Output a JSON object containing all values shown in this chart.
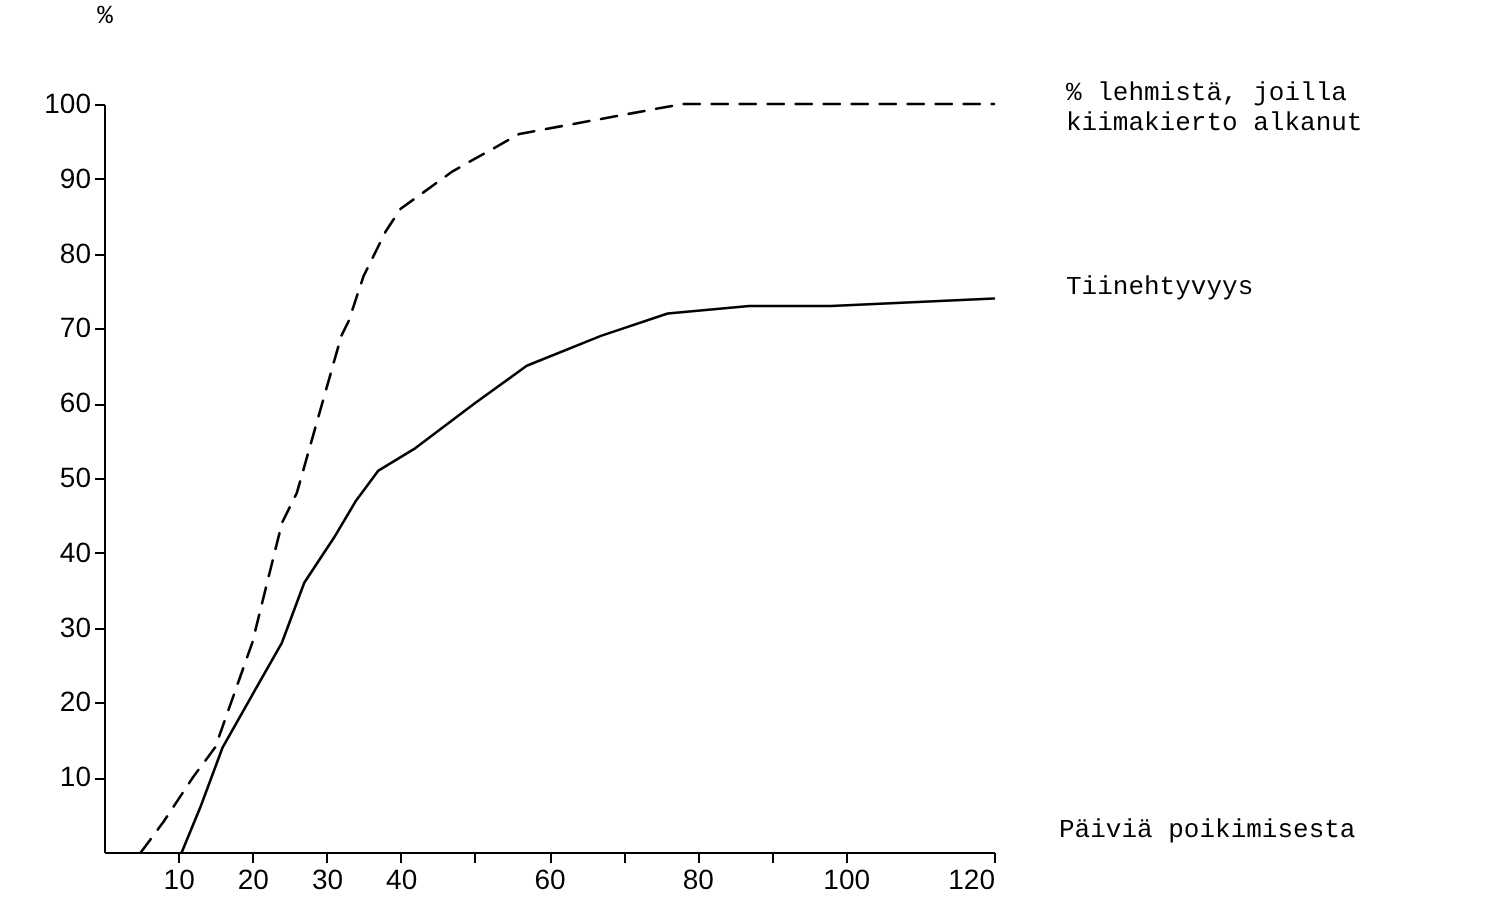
{
  "chart_data": {
    "type": "line",
    "xlabel": "Päiviä poikimisesta",
    "ylabel": "%",
    "xlim": [
      0,
      120
    ],
    "xticks": [
      10,
      20,
      30,
      40,
      {
        "value": 50,
        "label": null
      },
      60,
      {
        "value": 70,
        "label": null
      },
      80,
      {
        "value": 90,
        "label": null
      },
      100,
      120
    ],
    "ylim": [
      0,
      100
    ],
    "yticks": [
      10,
      20,
      30,
      40,
      50,
      60,
      70,
      80,
      90,
      100
    ],
    "grid": false,
    "legend": false,
    "marker": "none",
    "series": [
      {
        "name": "% lehmistä, joilla\nkiimakierto alkanut",
        "color": "#000000",
        "line_style": "dashed",
        "x": [
          5,
          8,
          12,
          15,
          20,
          24,
          26,
          32,
          33,
          35,
          38,
          40,
          47,
          56,
          67,
          78,
          94,
          120
        ],
        "values": [
          0,
          4,
          10,
          14,
          28,
          44,
          48,
          69,
          71,
          77,
          83,
          86,
          91,
          96,
          98,
          100,
          100,
          100
        ]
      },
      {
        "name": "Tiinehtyvyys",
        "color": "#000000",
        "line_style": "solid",
        "x": [
          10.5,
          13,
          16,
          20,
          24,
          27,
          31,
          34,
          37,
          42,
          50,
          57,
          67,
          76,
          87,
          98,
          120
        ],
        "values": [
          0,
          6,
          14,
          21,
          28,
          36,
          42,
          47,
          51,
          54,
          60,
          65,
          69,
          72,
          73,
          73,
          74
        ]
      }
    ]
  }
}
